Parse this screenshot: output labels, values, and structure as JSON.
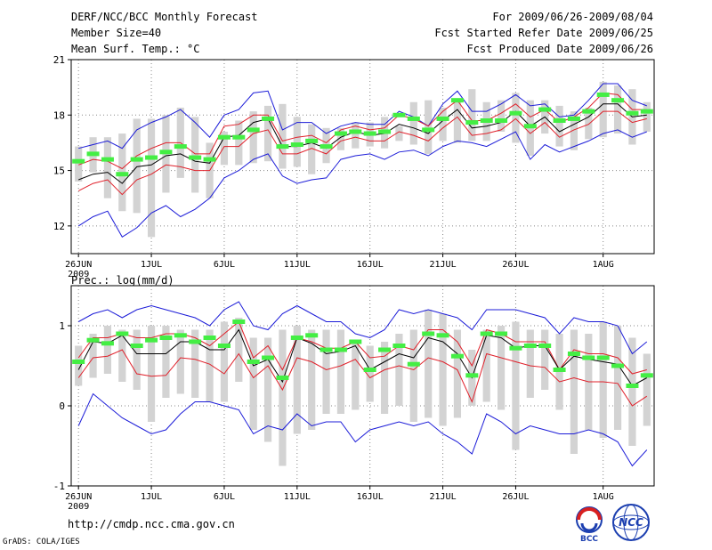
{
  "header": {
    "title": "DERF/NCC/BCC Monthly Forecast",
    "member_size": "Member Size=40",
    "variable": "Mean Surf. Temp.: °C",
    "period": "For 2009/06/26-2009/08/04",
    "started": "Fcst Started Refer Date 2009/06/25",
    "produced": "Fcst Produced Date 2009/06/26"
  },
  "footer": {
    "url": "http://cmdp.ncc.cma.gov.cn",
    "credit": "GrADS: COLA/IGES",
    "logo_bcc_text": "BCC",
    "logo_ncc_text": "NCC"
  },
  "colors": {
    "bar": "#d3d3d3",
    "ensemble_mean": "#000000",
    "inner_band": "#e0202a",
    "outer_band": "#1c1cd8",
    "climatology": "#44ee44",
    "grid": "#888888"
  },
  "chart_data": [
    {
      "type": "line",
      "title": "Mean Surf. Temp.: °C",
      "xlabel": "",
      "ylabel": "",
      "x_start": "2009-06-26",
      "days": 40,
      "xlim": [
        -0.5,
        39.5
      ],
      "ylim": [
        10.5,
        21
      ],
      "yticks": [
        12,
        15,
        18,
        21
      ],
      "xticks": [
        {
          "day": 0,
          "label": "26JUN",
          "sub": "2009"
        },
        {
          "day": 5,
          "label": "1JUL"
        },
        {
          "day": 10,
          "label": "6JUL"
        },
        {
          "day": 15,
          "label": "11JUL"
        },
        {
          "day": 20,
          "label": "16JUL"
        },
        {
          "day": 25,
          "label": "21JUL"
        },
        {
          "day": 30,
          "label": "26JUL"
        },
        {
          "day": 36,
          "label": "1AUG"
        }
      ],
      "grid": true,
      "series": [
        {
          "name": "bar_max",
          "values": [
            16.3,
            16.8,
            16.8,
            17.0,
            17.8,
            17.8,
            18.0,
            18.4,
            17.9,
            16.5,
            17.1,
            17.7,
            18.2,
            18.5,
            18.6,
            17.9,
            17.5,
            17.3,
            17.3,
            17.6,
            17.6,
            17.9,
            17.4,
            18.7,
            18.8,
            18.4,
            18.9,
            19.4,
            18.7,
            18.8,
            19.2,
            18.8,
            18.8,
            18.5,
            18.2,
            18.4,
            19.8,
            19.6,
            19.4,
            18.7
          ]
        },
        {
          "name": "bar_min",
          "values": [
            14.4,
            14.9,
            13.5,
            12.8,
            12.7,
            11.4,
            13.8,
            14.6,
            13.8,
            13.5,
            15.3,
            15.3,
            15.4,
            15.5,
            15.1,
            15.2,
            14.8,
            15.4,
            16.1,
            16.2,
            16.3,
            16.2,
            16.6,
            16.4,
            15.9,
            16.6,
            16.5,
            16.6,
            16.6,
            17.1,
            16.5,
            15.8,
            17.0,
            16.3,
            16.1,
            16.7,
            16.8,
            17.0,
            16.4,
            17.1
          ]
        },
        {
          "name": "outer_upper",
          "values": [
            16.2,
            16.4,
            16.6,
            16.2,
            17.2,
            17.6,
            17.9,
            18.3,
            17.6,
            16.8,
            18.0,
            18.3,
            19.2,
            19.3,
            17.2,
            17.6,
            17.6,
            17.0,
            17.4,
            17.6,
            17.5,
            17.5,
            18.2,
            17.9,
            17.4,
            18.6,
            19.3,
            18.2,
            18.2,
            18.6,
            19.1,
            18.5,
            18.6,
            17.9,
            18.0,
            18.8,
            19.7,
            19.7,
            18.8,
            18.5
          ]
        },
        {
          "name": "inner_upper",
          "values": [
            15.3,
            15.6,
            15.5,
            15.1,
            15.8,
            16.2,
            16.5,
            16.5,
            15.9,
            15.9,
            17.4,
            17.5,
            18.0,
            18.0,
            16.6,
            16.8,
            16.9,
            16.5,
            17.2,
            17.4,
            17.2,
            17.3,
            18.0,
            17.8,
            17.4,
            18.2,
            18.8,
            17.7,
            17.7,
            18.1,
            18.6,
            17.9,
            18.3,
            17.6,
            17.9,
            18.4,
            19.2,
            19.1,
            18.3,
            18.3
          ]
        },
        {
          "name": "ensemble_mean",
          "values": [
            14.5,
            14.8,
            14.9,
            14.3,
            15.2,
            15.3,
            15.8,
            15.9,
            15.5,
            15.4,
            16.8,
            16.9,
            17.6,
            17.8,
            16.3,
            16.3,
            16.5,
            16.2,
            16.8,
            17.1,
            16.9,
            17.0,
            17.5,
            17.3,
            17.0,
            17.7,
            18.3,
            17.3,
            17.4,
            17.6,
            18.2,
            17.4,
            17.9,
            17.1,
            17.5,
            17.9,
            18.6,
            18.6,
            17.9,
            18.0
          ]
        },
        {
          "name": "inner_lower",
          "values": [
            13.9,
            14.3,
            14.5,
            13.7,
            14.5,
            14.8,
            15.3,
            15.2,
            15.0,
            15.0,
            16.3,
            16.3,
            17.0,
            17.2,
            15.9,
            15.9,
            16.2,
            15.9,
            16.6,
            16.8,
            16.6,
            16.6,
            17.1,
            16.9,
            16.6,
            17.3,
            17.9,
            16.9,
            17.0,
            17.2,
            17.8,
            17.0,
            17.6,
            16.8,
            17.2,
            17.5,
            18.2,
            18.2,
            17.6,
            17.8
          ]
        },
        {
          "name": "outer_lower",
          "values": [
            12.0,
            12.5,
            12.8,
            11.4,
            11.9,
            12.7,
            13.1,
            12.5,
            12.9,
            13.5,
            14.6,
            15.0,
            15.6,
            15.9,
            14.7,
            14.3,
            14.5,
            14.6,
            15.6,
            15.8,
            15.9,
            15.6,
            16.0,
            16.1,
            15.8,
            16.3,
            16.6,
            16.5,
            16.3,
            16.7,
            17.1,
            15.6,
            16.4,
            16.0,
            16.3,
            16.6,
            17.0,
            17.2,
            16.8,
            17.1
          ]
        },
        {
          "name": "climatology",
          "values": [
            15.5,
            15.9,
            15.6,
            14.8,
            15.6,
            15.7,
            16.0,
            16.3,
            15.7,
            15.6,
            16.8,
            16.8,
            17.2,
            17.8,
            16.3,
            16.4,
            16.6,
            16.3,
            17.0,
            17.1,
            17.0,
            17.1,
            18.0,
            17.8,
            17.2,
            17.8,
            18.8,
            17.6,
            17.7,
            17.7,
            18.1,
            17.4,
            18.3,
            17.7,
            17.8,
            18.2,
            19.1,
            18.8,
            18.1,
            18.2
          ]
        }
      ]
    },
    {
      "type": "line",
      "title": "Prec.: log(mm/d)",
      "xlabel": "",
      "ylabel": "",
      "x_start": "2009-06-26",
      "days": 40,
      "xlim": [
        -0.5,
        39.5
      ],
      "ylim": [
        -1,
        1.5
      ],
      "yticks": [
        -1,
        0,
        1
      ],
      "xticks": [
        {
          "day": 0,
          "label": "26JUN",
          "sub": "2009"
        },
        {
          "day": 5,
          "label": "1JUL"
        },
        {
          "day": 10,
          "label": "6JUL"
        },
        {
          "day": 15,
          "label": "11JUL"
        },
        {
          "day": 20,
          "label": "16JUL"
        },
        {
          "day": 25,
          "label": "21JUL"
        },
        {
          "day": 30,
          "label": "26JUL"
        },
        {
          "day": 36,
          "label": "1AUG"
        }
      ],
      "grid": true,
      "series": [
        {
          "name": "bar_max",
          "values": [
            0.75,
            0.9,
            1.0,
            0.95,
            0.95,
            1.0,
            1.0,
            0.95,
            0.95,
            0.95,
            1.05,
            1.1,
            0.85,
            0.85,
            0.95,
            1.0,
            0.95,
            0.95,
            0.95,
            0.8,
            0.75,
            0.8,
            0.9,
            0.95,
            1.2,
            1.15,
            0.95,
            0.7,
            0.95,
            1.0,
            1.05,
            0.95,
            0.95,
            0.9,
            0.95,
            0.9,
            1.05,
            1.0,
            0.85,
            0.65
          ]
        },
        {
          "name": "bar_min",
          "values": [
            0.25,
            0.35,
            0.4,
            0.3,
            0.2,
            -0.2,
            0.1,
            0.15,
            0.1,
            0.05,
            0.05,
            0.3,
            -0.3,
            -0.45,
            -0.75,
            -0.35,
            -0.3,
            -0.1,
            -0.1,
            -0.05,
            0.05,
            -0.1,
            0.0,
            -0.2,
            -0.15,
            -0.25,
            -0.15,
            0.0,
            0.05,
            -0.05,
            -0.55,
            0.1,
            0.2,
            -0.05,
            -0.6,
            -0.3,
            -0.4,
            -0.3,
            -0.5,
            -0.25
          ]
        },
        {
          "name": "outer_upper",
          "values": [
            1.05,
            1.15,
            1.2,
            1.1,
            1.2,
            1.25,
            1.2,
            1.15,
            1.1,
            1.0,
            1.2,
            1.3,
            1.0,
            0.95,
            1.15,
            1.25,
            1.15,
            1.05,
            1.05,
            0.9,
            0.85,
            0.95,
            1.2,
            1.15,
            1.2,
            1.15,
            1.1,
            0.95,
            1.2,
            1.2,
            1.2,
            1.15,
            1.1,
            0.9,
            1.1,
            1.05,
            1.05,
            1.0,
            0.65,
            0.8
          ]
        },
        {
          "name": "inner_upper",
          "values": [
            0.6,
            0.85,
            0.85,
            0.9,
            0.85,
            0.85,
            0.9,
            0.9,
            0.85,
            0.75,
            0.9,
            1.05,
            0.6,
            0.75,
            0.45,
            0.85,
            0.8,
            0.72,
            0.72,
            0.8,
            0.6,
            0.62,
            0.75,
            0.7,
            0.95,
            0.95,
            0.8,
            0.5,
            0.95,
            0.9,
            0.8,
            0.8,
            0.8,
            0.45,
            0.7,
            0.65,
            0.65,
            0.6,
            0.4,
            0.45
          ]
        },
        {
          "name": "ensemble_mean",
          "values": [
            0.45,
            0.8,
            0.78,
            0.88,
            0.65,
            0.65,
            0.65,
            0.8,
            0.8,
            0.7,
            0.7,
            0.95,
            0.5,
            0.58,
            0.3,
            0.85,
            0.78,
            0.65,
            0.68,
            0.75,
            0.45,
            0.55,
            0.65,
            0.6,
            0.85,
            0.8,
            0.65,
            0.35,
            0.88,
            0.85,
            0.72,
            0.75,
            0.75,
            0.45,
            0.62,
            0.58,
            0.55,
            0.52,
            0.25,
            0.35
          ]
        },
        {
          "name": "inner_lower",
          "values": [
            0.35,
            0.6,
            0.62,
            0.7,
            0.4,
            0.37,
            0.38,
            0.6,
            0.58,
            0.52,
            0.4,
            0.65,
            0.35,
            0.5,
            0.2,
            0.6,
            0.55,
            0.45,
            0.5,
            0.58,
            0.35,
            0.45,
            0.5,
            0.45,
            0.6,
            0.55,
            0.45,
            0.05,
            0.65,
            0.6,
            0.55,
            0.5,
            0.48,
            0.3,
            0.35,
            0.3,
            0.3,
            0.28,
            0.0,
            0.12
          ]
        },
        {
          "name": "outer_lower",
          "values": [
            -0.25,
            0.15,
            0.0,
            -0.15,
            -0.25,
            -0.35,
            -0.3,
            -0.1,
            0.05,
            0.05,
            0.0,
            -0.05,
            -0.35,
            -0.25,
            -0.3,
            -0.1,
            -0.25,
            -0.2,
            -0.2,
            -0.45,
            -0.3,
            -0.25,
            -0.2,
            -0.25,
            -0.2,
            -0.35,
            -0.45,
            -0.6,
            -0.1,
            -0.2,
            -0.35,
            -0.25,
            -0.3,
            -0.35,
            -0.35,
            -0.3,
            -0.35,
            -0.45,
            -0.75,
            -0.55
          ]
        },
        {
          "name": "climatology",
          "values": [
            0.55,
            0.82,
            0.78,
            0.9,
            0.75,
            0.82,
            0.85,
            0.88,
            0.8,
            0.85,
            0.75,
            1.05,
            0.55,
            0.6,
            0.35,
            0.85,
            0.88,
            0.7,
            0.7,
            0.8,
            0.45,
            0.7,
            0.75,
            0.52,
            0.9,
            0.88,
            0.62,
            0.38,
            0.9,
            0.9,
            0.72,
            0.75,
            0.75,
            0.45,
            0.65,
            0.6,
            0.6,
            0.5,
            0.25,
            0.38
          ]
        }
      ]
    }
  ]
}
